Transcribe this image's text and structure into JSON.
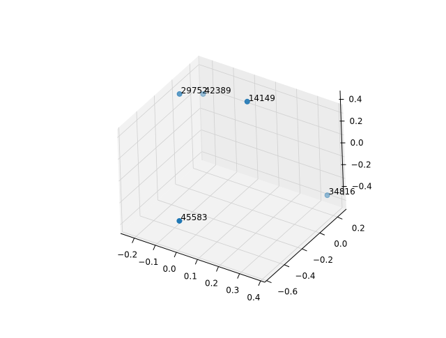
{
  "chart_data": {
    "type": "scatter",
    "projection": "3d",
    "title": "",
    "xlabel": "",
    "ylabel": "",
    "zlabel": "",
    "xlim": [
      -0.265,
      0.42
    ],
    "ylim": [
      -0.62,
      0.3
    ],
    "zlim": [
      -0.48,
      0.48
    ],
    "grid": true,
    "color": "#1f77b4",
    "x_ticks": [
      "−0.2",
      "−0.1",
      "0.0",
      "0.1",
      "0.2",
      "0.3",
      "0.4"
    ],
    "x_tick_values": [
      -0.2,
      -0.1,
      0.0,
      0.1,
      0.2,
      0.3,
      0.4
    ],
    "y_ticks": [
      "−0.6",
      "−0.4",
      "−0.2",
      "0.0",
      "0.2"
    ],
    "y_tick_values": [
      -0.6,
      -0.4,
      -0.2,
      0.0,
      0.2
    ],
    "z_ticks": [
      "−0.4",
      "−0.2",
      "0.0",
      "0.2",
      "0.4"
    ],
    "z_tick_values": [
      -0.4,
      -0.2,
      0.0,
      0.2,
      0.4
    ],
    "points": [
      {
        "label": "29752",
        "x": -0.24,
        "y": 0.02,
        "z": 0.35,
        "alpha": 0.7
      },
      {
        "label": "42389",
        "x": -0.21,
        "y": 0.21,
        "z": 0.23,
        "alpha": 0.4
      },
      {
        "label": "14149",
        "x": 0.04,
        "y": 0.12,
        "z": 0.39,
        "alpha": 0.9
      },
      {
        "label": "34816",
        "x": 0.37,
        "y": 0.21,
        "z": -0.32,
        "alpha": 0.45
      },
      {
        "label": "45583",
        "x": -0.02,
        "y": -0.53,
        "z": -0.27,
        "alpha": 1.0
      }
    ]
  }
}
